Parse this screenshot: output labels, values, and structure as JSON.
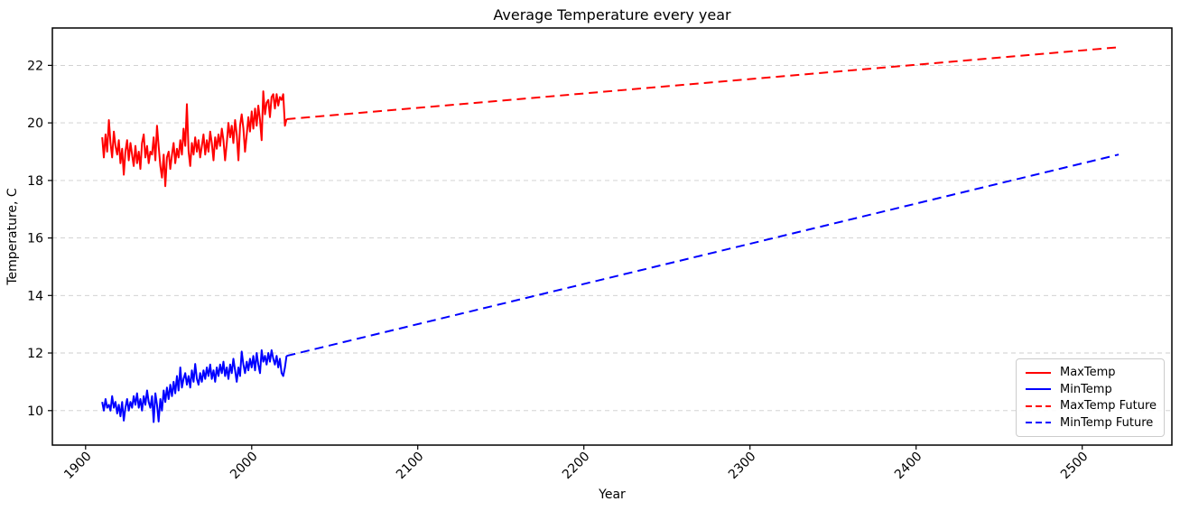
{
  "figure": {
    "title": "Average Temperature every year",
    "xlabel": "Year",
    "ylabel": "Temperature, C",
    "background_color": "#ffffff",
    "spine_color": "#000000",
    "grid_color": "#cccccc",
    "tick_label_color": "#000000"
  },
  "chart_data": {
    "type": "line",
    "title": "Average Temperature every year",
    "xlabel": "Year",
    "ylabel": "Temperature, C",
    "xlim": [
      1880,
      2554
    ],
    "ylim": [
      8.8,
      23.3
    ],
    "xticks": [
      1900,
      2000,
      2100,
      2200,
      2300,
      2400,
      2500
    ],
    "yticks": [
      10,
      12,
      14,
      16,
      18,
      20,
      22
    ],
    "xtick_rotation_deg": 45,
    "grid": "horizontal-dashed",
    "legend_position": "lower right",
    "legend_entries": [
      "MaxTemp",
      "MinTemp",
      "MaxTemp Future",
      "MinTemp Future"
    ],
    "series": [
      {
        "name": "MaxTemp",
        "color": "#ff0000",
        "style": "solid",
        "x_start": 1910,
        "x_step": 1,
        "values": [
          19.5,
          18.8,
          19.6,
          19.0,
          20.1,
          19.3,
          18.8,
          19.7,
          19.2,
          18.9,
          19.4,
          18.6,
          19.1,
          18.2,
          19.0,
          19.4,
          18.7,
          19.3,
          18.9,
          18.5,
          19.2,
          18.6,
          19.0,
          18.4,
          19.3,
          19.6,
          18.8,
          19.2,
          18.6,
          19.0,
          18.9,
          19.5,
          18.7,
          19.9,
          19.2,
          18.5,
          18.1,
          18.9,
          17.8,
          18.8,
          19.0,
          18.4,
          18.9,
          19.3,
          18.6,
          19.1,
          18.8,
          19.4,
          18.9,
          19.8,
          19.2,
          20.65,
          19.0,
          18.5,
          19.3,
          18.9,
          19.5,
          19.0,
          19.4,
          18.8,
          19.2,
          19.6,
          18.9,
          19.4,
          19.0,
          19.7,
          19.3,
          18.7,
          19.5,
          19.1,
          19.6,
          19.2,
          19.8,
          19.4,
          18.7,
          19.3,
          20.0,
          19.5,
          19.9,
          19.3,
          20.1,
          19.6,
          18.7,
          19.9,
          20.3,
          19.8,
          19.0,
          19.6,
          20.2,
          19.7,
          20.4,
          19.8,
          20.5,
          19.9,
          20.6,
          20.1,
          19.4,
          21.1,
          20.3,
          20.7,
          20.8,
          20.2,
          20.9,
          21.0,
          20.5,
          21.0,
          20.6,
          20.9,
          20.8,
          21.0,
          19.9,
          20.13
        ]
      },
      {
        "name": "MinTemp",
        "color": "#0000ff",
        "style": "solid",
        "x_start": 1910,
        "x_step": 1,
        "values": [
          10.3,
          10.0,
          10.4,
          10.1,
          10.2,
          10.0,
          10.5,
          10.1,
          10.3,
          9.9,
          10.2,
          9.8,
          10.3,
          9.65,
          10.1,
          10.4,
          10.0,
          10.3,
          10.1,
          10.5,
          10.2,
          10.6,
          10.1,
          10.4,
          10.0,
          10.5,
          10.2,
          10.7,
          10.3,
          10.1,
          10.5,
          9.6,
          10.6,
          10.2,
          9.62,
          10.4,
          10.0,
          10.7,
          10.3,
          10.8,
          10.4,
          10.9,
          10.5,
          11.0,
          10.6,
          11.2,
          10.7,
          11.5,
          10.8,
          11.1,
          11.3,
          10.9,
          11.2,
          10.8,
          11.4,
          11.0,
          11.62,
          11.1,
          10.9,
          11.3,
          11.0,
          11.4,
          11.1,
          11.5,
          11.2,
          11.6,
          11.1,
          11.4,
          11.0,
          11.5,
          11.2,
          11.6,
          11.3,
          11.7,
          11.2,
          11.5,
          11.1,
          11.6,
          11.3,
          11.8,
          11.4,
          11.0,
          11.5,
          11.2,
          12.05,
          11.6,
          11.3,
          11.7,
          11.4,
          11.8,
          11.5,
          11.9,
          11.4,
          12.0,
          11.6,
          11.3,
          12.1,
          11.7,
          11.9,
          11.6,
          12.0,
          11.7,
          12.1,
          11.8,
          11.6,
          11.9,
          11.5,
          11.8,
          11.3,
          11.2,
          11.5,
          11.9
        ]
      },
      {
        "name": "MaxTemp Future",
        "color": "#ff0000",
        "style": "dashed",
        "x": [
          2021,
          2522
        ],
        "values": [
          20.13,
          22.63
        ]
      },
      {
        "name": "MinTemp Future",
        "color": "#0000ff",
        "style": "dashed",
        "x": [
          2021,
          2522
        ],
        "values": [
          11.9,
          18.9
        ]
      }
    ]
  }
}
